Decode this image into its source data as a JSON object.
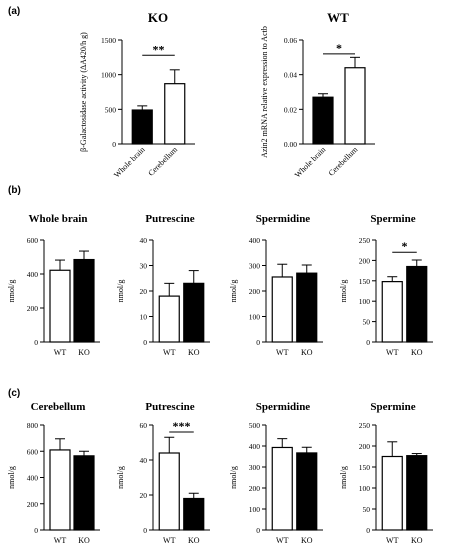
{
  "colors": {
    "filled": "#000000",
    "open": "#ffffff",
    "stroke": "#000000"
  },
  "panel_labels": {
    "a": "(a)",
    "b": "(b)",
    "c": "(c)"
  },
  "chart_data": [
    {
      "id": "a-ko",
      "type": "bar",
      "title": "KO",
      "ylabel": "β-Galactosidase activity (ΔA420/h g)",
      "categories": [
        "Whole brain",
        "Cerebellum"
      ],
      "values": [
        490,
        870
      ],
      "errors": [
        60,
        200
      ],
      "fills": [
        "filled",
        "open"
      ],
      "ylim": [
        0,
        1500
      ],
      "yticks": [
        "0",
        "500",
        "1000",
        "1500"
      ],
      "ytick_values": [
        0,
        500,
        1000,
        1500
      ],
      "xtick_rotate": true,
      "significance": "**",
      "sig_value": 1280
    },
    {
      "id": "a-wt",
      "type": "bar",
      "title": "WT",
      "ylabel": "Azin2 mRNA relative expression to Actb",
      "categories": [
        "Whole brain",
        "Cerebellum"
      ],
      "values": [
        0.027,
        0.044
      ],
      "errors": [
        0.002,
        0.006
      ],
      "fills": [
        "filled",
        "open"
      ],
      "ylim": [
        0,
        0.06
      ],
      "yticks": [
        "0.00",
        "0.02",
        "0.04",
        "0.06"
      ],
      "ytick_values": [
        0,
        0.02,
        0.04,
        0.06
      ],
      "xtick_rotate": true,
      "significance": "*",
      "sig_value": 0.052
    },
    {
      "id": "b-whole",
      "type": "bar",
      "title": "Whole brain",
      "ylabel": "nmol/g",
      "categories": [
        "WT",
        "KO"
      ],
      "values": [
        422,
        485
      ],
      "errors": [
        60,
        50
      ],
      "fills": [
        "open",
        "filled"
      ],
      "ylim": [
        0,
        600
      ],
      "yticks": [
        "0",
        "200",
        "400",
        "600"
      ],
      "ytick_values": [
        0,
        200,
        400,
        600
      ]
    },
    {
      "id": "b-put",
      "type": "bar",
      "title": "Putrescine",
      "ylabel": "nmol/g",
      "categories": [
        "WT",
        "KO"
      ],
      "values": [
        18,
        23
      ],
      "errors": [
        5,
        5
      ],
      "fills": [
        "open",
        "filled"
      ],
      "ylim": [
        0,
        40
      ],
      "yticks": [
        "0",
        "10",
        "20",
        "30",
        "40"
      ],
      "ytick_values": [
        0,
        10,
        20,
        30,
        40
      ]
    },
    {
      "id": "b-spd",
      "type": "bar",
      "title": "Spermidine",
      "ylabel": "nmol/g",
      "categories": [
        "WT",
        "KO"
      ],
      "values": [
        255,
        270
      ],
      "errors": [
        50,
        32
      ],
      "fills": [
        "open",
        "filled"
      ],
      "ylim": [
        0,
        400
      ],
      "yticks": [
        "0",
        "100",
        "200",
        "300",
        "400"
      ],
      "ytick_values": [
        0,
        100,
        200,
        300,
        400
      ]
    },
    {
      "id": "b-spm",
      "type": "bar",
      "title": "Spermine",
      "ylabel": "nmol/g",
      "categories": [
        "WT",
        "KO"
      ],
      "values": [
        148,
        185
      ],
      "errors": [
        12,
        16
      ],
      "fills": [
        "open",
        "filled"
      ],
      "ylim": [
        0,
        250
      ],
      "yticks": [
        "0",
        "50",
        "100",
        "150",
        "200",
        "250"
      ],
      "ytick_values": [
        0,
        50,
        100,
        150,
        200,
        250
      ],
      "significance": "*",
      "sig_value": 220
    },
    {
      "id": "c-cereb",
      "type": "bar",
      "title": "Cerebellum",
      "ylabel": "nmol/g",
      "categories": [
        "WT",
        "KO"
      ],
      "values": [
        610,
        565
      ],
      "errors": [
        85,
        35
      ],
      "fills": [
        "open",
        "filled"
      ],
      "ylim": [
        0,
        800
      ],
      "yticks": [
        "0",
        "200",
        "400",
        "600",
        "800"
      ],
      "ytick_values": [
        0,
        200,
        400,
        600,
        800
      ]
    },
    {
      "id": "c-put",
      "type": "bar",
      "title": "Putrescine",
      "ylabel": "nmol/g",
      "categories": [
        "WT",
        "KO"
      ],
      "values": [
        44,
        18
      ],
      "errors": [
        9,
        3
      ],
      "fills": [
        "open",
        "filled"
      ],
      "ylim": [
        0,
        60
      ],
      "yticks": [
        "0",
        "20",
        "40",
        "60"
      ],
      "ytick_values": [
        0,
        20,
        40,
        60
      ],
      "significance": "***",
      "sig_value": 56
    },
    {
      "id": "c-spd",
      "type": "bar",
      "title": "Spermidine",
      "ylabel": "nmol/g",
      "categories": [
        "WT",
        "KO"
      ],
      "values": [
        393,
        367
      ],
      "errors": [
        42,
        27
      ],
      "fills": [
        "open",
        "filled"
      ],
      "ylim": [
        0,
        500
      ],
      "yticks": [
        "0",
        "100",
        "200",
        "300",
        "400",
        "500"
      ],
      "ytick_values": [
        0,
        100,
        200,
        300,
        400,
        500
      ]
    },
    {
      "id": "c-spm",
      "type": "bar",
      "title": "Spermine",
      "ylabel": "nmol/g",
      "categories": [
        "WT",
        "KO"
      ],
      "values": [
        175,
        177
      ],
      "errors": [
        35,
        5
      ],
      "fills": [
        "open",
        "filled"
      ],
      "ylim": [
        0,
        250
      ],
      "yticks": [
        "0",
        "50",
        "100",
        "150",
        "200",
        "250"
      ],
      "ytick_values": [
        0,
        50,
        100,
        150,
        200,
        250
      ]
    }
  ]
}
